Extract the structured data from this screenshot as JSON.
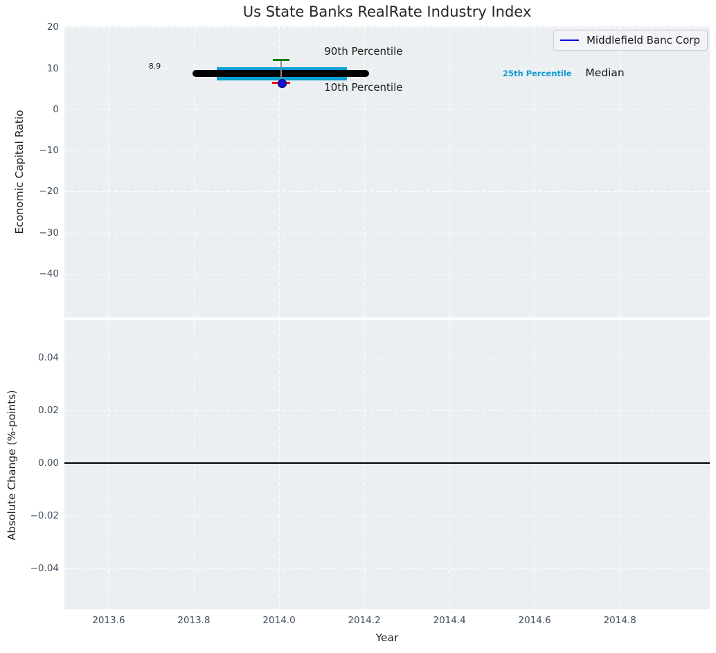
{
  "title": "Us State Banks RealRate Industry Index",
  "legend": {
    "label": "Middlefield Banc Corp",
    "line_color": "#0000e0"
  },
  "colors": {
    "axes_background": "#eceff1",
    "grid": "#ffffff",
    "tick_labels": "#3e4e5e",
    "median_line": "#000000",
    "percentile25_line": "#0a9fd5",
    "percentile90_cap": "#008000",
    "percentile10_cap": "#ff0000",
    "company_marker": "#1111cc",
    "legend_line": "#0000e0"
  },
  "chart_data": [
    {
      "type": "line",
      "title": "Us State Banks RealRate Industry Index",
      "ylabel": "Economic Capital Ratio",
      "xlabel": "",
      "xlim": [
        2013.496,
        2015.011
      ],
      "ylim": [
        -50.6,
        20.32
      ],
      "grid": true,
      "legend_position": "upper right",
      "yticks": [
        {
          "v": 20,
          "label": "20"
        },
        {
          "v": 10,
          "label": "10"
        },
        {
          "v": 0,
          "label": "0"
        },
        {
          "v": -10,
          "label": "−10"
        },
        {
          "v": -20,
          "label": "−20"
        },
        {
          "v": -30,
          "label": "−30"
        },
        {
          "v": -40,
          "label": "−40"
        }
      ],
      "xticks": [
        {
          "v": 2013.6
        },
        {
          "v": 2013.8
        },
        {
          "v": 2014.0
        },
        {
          "v": 2014.2
        },
        {
          "v": 2014.4
        },
        {
          "v": 2014.6
        },
        {
          "v": 2014.8
        }
      ],
      "show_xtick_labels": false,
      "series": [
        {
          "name": "25th Percentile",
          "type": "segment",
          "x": [
            2013.854,
            2014.159
          ],
          "y": 8.77,
          "color": "#0a9fd5",
          "lw": 19,
          "cap": "butt"
        },
        {
          "name": "Median",
          "type": "segment",
          "x": [
            2013.797,
            2014.211
          ],
          "y": 8.9,
          "color": "#000000",
          "lw": 10,
          "cap": "round"
        },
        {
          "name": "10th-90th Percentile range",
          "type": "errorbar",
          "x": 2014.005,
          "y_top": 12.2,
          "y_bottom": 6.64,
          "line_color": "#8a8a8a",
          "cap_top_color": "#008000",
          "cap_bottom_color": "#ff0000",
          "cap_w": 24,
          "cap_h": 3
        },
        {
          "name": "Middlefield Banc Corp",
          "type": "point",
          "x": 2014.005,
          "y": 6.52,
          "color": "#1111cc",
          "edge_color": "#000066",
          "size": 11
        }
      ],
      "annotations": [
        {
          "text": "8.9",
          "x": 2013.694,
          "y": 10.4,
          "size": 11,
          "color": "#1a1a1a",
          "bold": false
        },
        {
          "text": "90th Percentile",
          "x": 2014.106,
          "y": 14.0,
          "size": 15,
          "color": "#1a1a1a",
          "bold": false
        },
        {
          "text": "10th Percentile",
          "x": 2014.106,
          "y": 5.3,
          "size": 15,
          "color": "#1a1a1a",
          "bold": false
        },
        {
          "text": "25th Percentile",
          "x": 2014.525,
          "y": 8.67,
          "size": 11.5,
          "color": "#0f9bd2",
          "bold": true
        },
        {
          "text": "Median",
          "x": 2014.719,
          "y": 8.75,
          "size": 15.5,
          "color": "#111111",
          "bold": false
        }
      ]
    },
    {
      "type": "line",
      "title": "",
      "ylabel": "Absolute Change (%-points)",
      "xlabel": "Year",
      "xlim": [
        2013.496,
        2015.011
      ],
      "ylim": [
        -0.0553,
        0.0542
      ],
      "grid": true,
      "yticks": [
        {
          "v": 0.04,
          "label": "0.04"
        },
        {
          "v": 0.02,
          "label": "0.02"
        },
        {
          "v": 0.0,
          "label": "0.00"
        },
        {
          "v": -0.02,
          "label": "−0.02"
        },
        {
          "v": -0.04,
          "label": "−0.04"
        }
      ],
      "xticks": [
        {
          "v": 2013.6,
          "label": "2013.6"
        },
        {
          "v": 2013.8,
          "label": "2013.8"
        },
        {
          "v": 2014.0,
          "label": "2014.0"
        },
        {
          "v": 2014.2,
          "label": "2014.2"
        },
        {
          "v": 2014.4,
          "label": "2014.4"
        },
        {
          "v": 2014.6,
          "label": "2014.6"
        },
        {
          "v": 2014.8,
          "label": "2014.8"
        }
      ],
      "show_xtick_labels": true,
      "series": [
        {
          "name": "zero change baseline",
          "type": "hline",
          "y": 0.0,
          "color": "#000000",
          "lw": 2
        }
      ],
      "annotations": []
    }
  ]
}
